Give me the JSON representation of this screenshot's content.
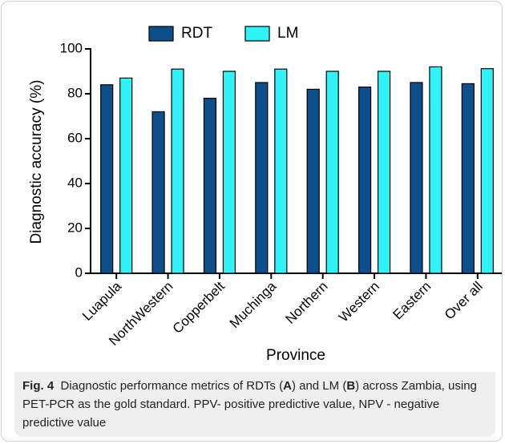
{
  "chart_data": {
    "type": "bar",
    "x_label": "Province",
    "y_label": "Diagnostic accuracy (%)",
    "categories": [
      "Luapula",
      "NorthWestern",
      "Copperbelt",
      "Muchinga",
      "Northern",
      "Western",
      "Eastern",
      "Over all"
    ],
    "series": [
      {
        "name": "RDT",
        "color": "#0d4f8b",
        "values": [
          84,
          72,
          78,
          85,
          82,
          83,
          85,
          84.5
        ]
      },
      {
        "name": "LM",
        "color": "#2ff3f7",
        "values": [
          87,
          91,
          90,
          91,
          90,
          90,
          92,
          91.2
        ]
      }
    ],
    "ylim": [
      0,
      100
    ],
    "yticks": [
      0,
      20,
      40,
      60,
      80,
      100
    ],
    "legend": "top"
  },
  "caption": {
    "label": "Fig. 4",
    "parts": [
      "Diagnostic performance metrics of RDTs (",
      "A",
      ") and LM (",
      "B",
      ") across Zambia, using PET-PCR as the gold standard. PPV- positive predictive value, NPV - negative predictive value"
    ]
  }
}
